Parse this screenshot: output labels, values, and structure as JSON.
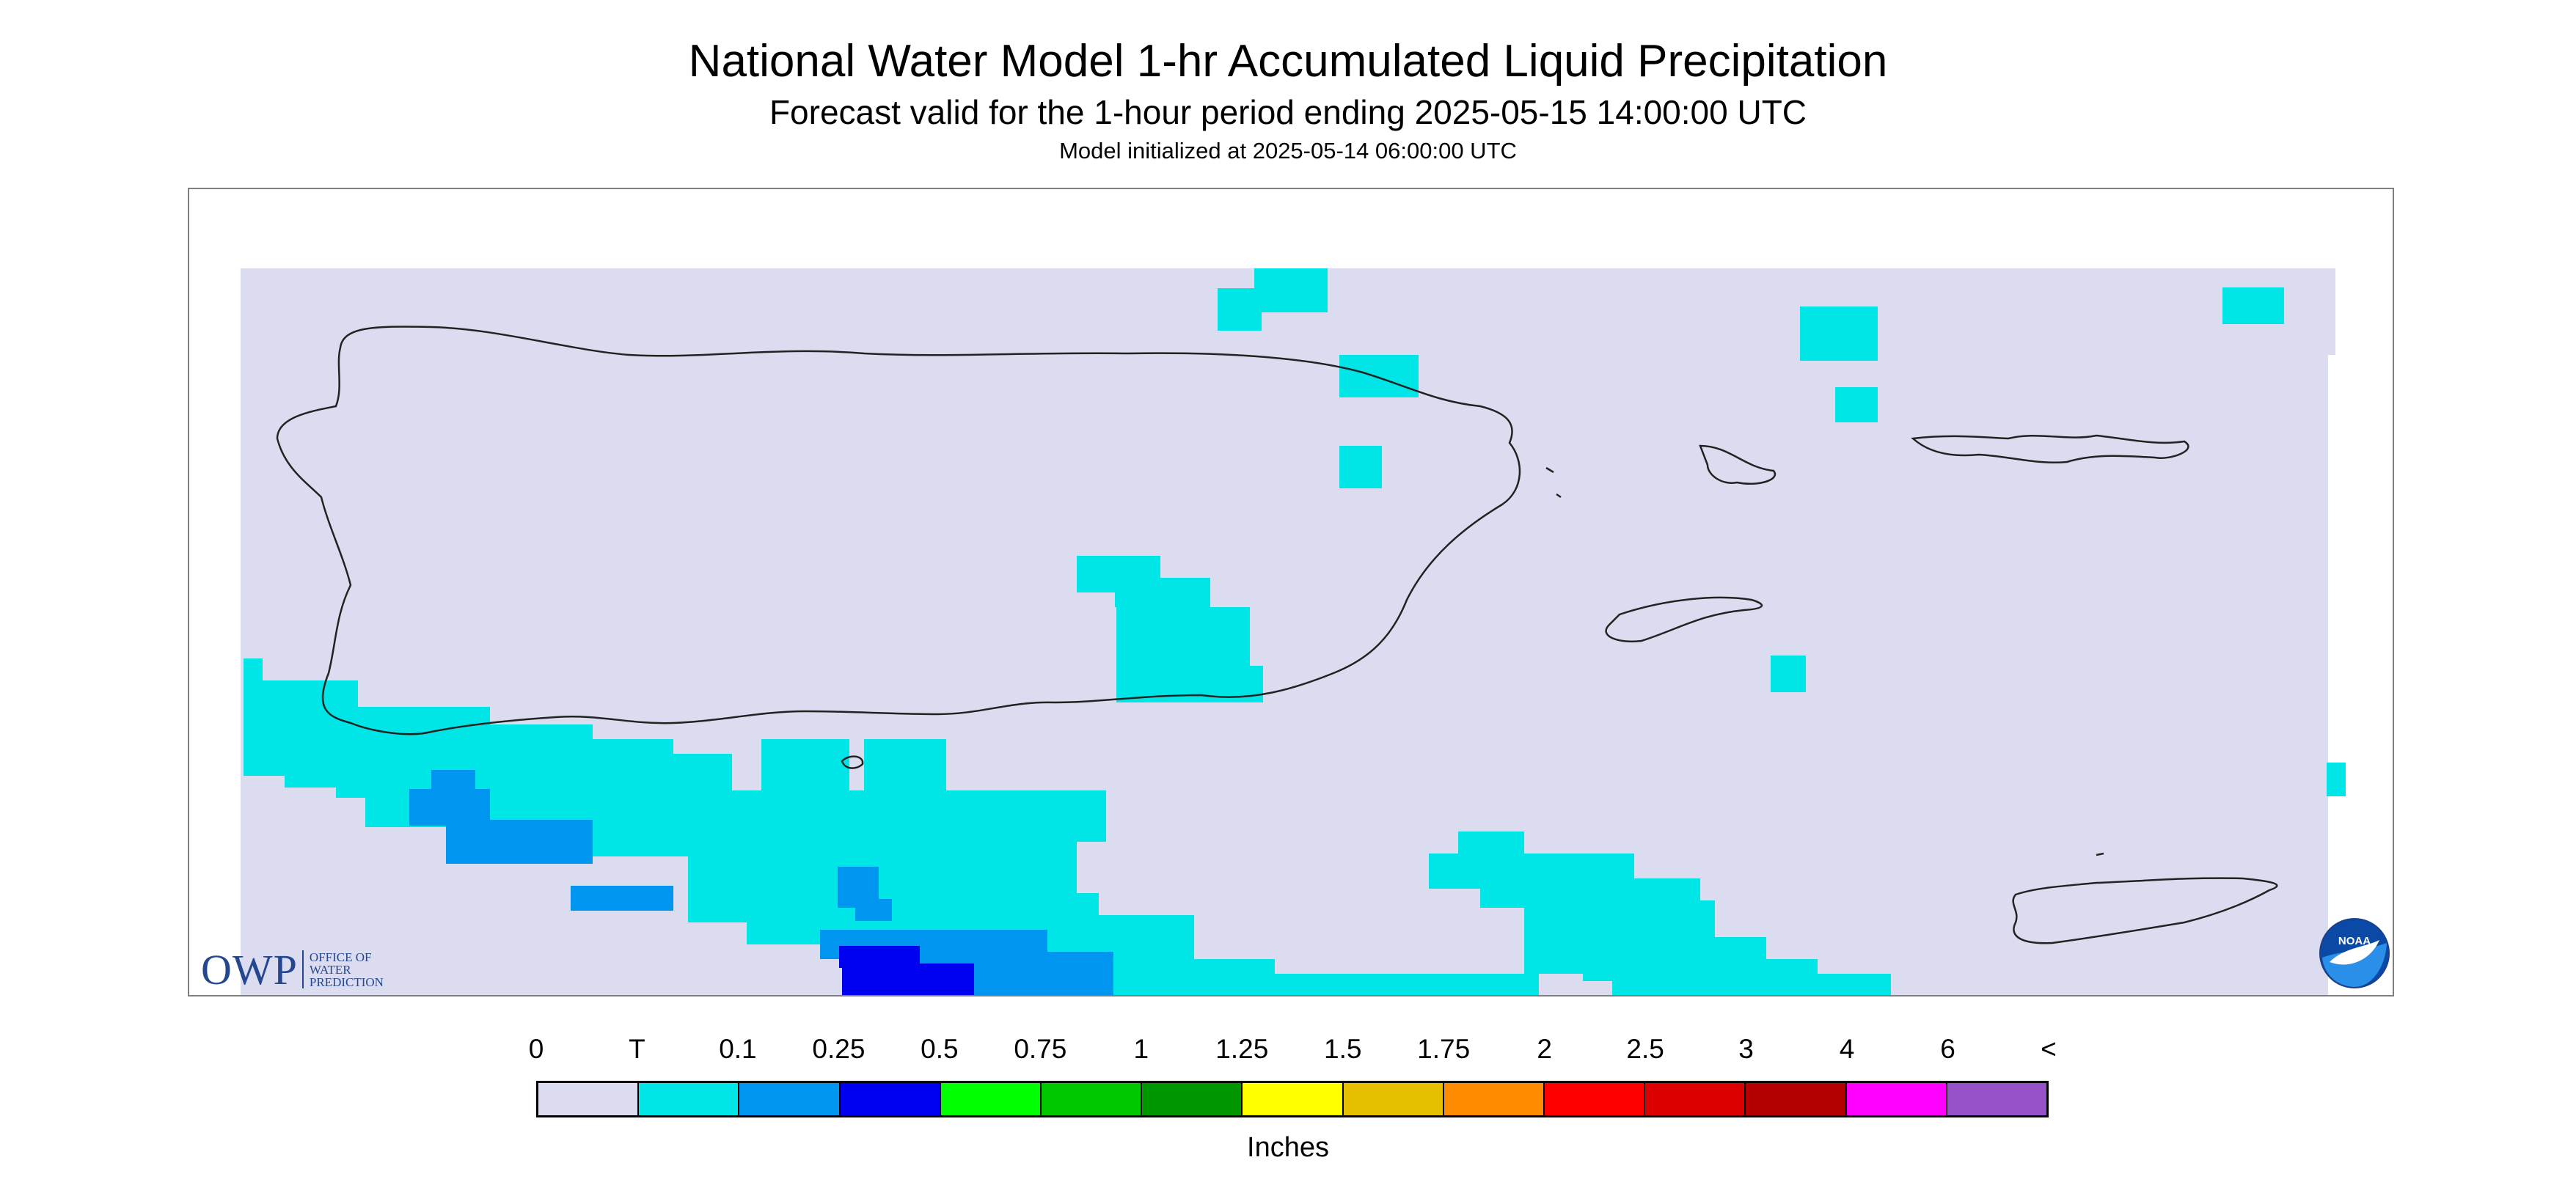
{
  "header": {
    "title": "National Water Model 1-hr Accumulated Liquid Precipitation",
    "subtitle": "Forecast valid for the 1-hour period ending 2025-05-15 14:00:00 UTC",
    "initialized": "Model initialized at 2025-05-14 06:00:00 UTC"
  },
  "map": {
    "region": "Puerto Rico and U.S. Virgin Islands",
    "no_data_color": "#ffffff",
    "background_color": "#dcdcf0",
    "precip_areas": [
      {
        "category": "T",
        "color": "#00e6e6",
        "extent": "scattered cells south of Puerto Rico coast"
      },
      {
        "category": "T",
        "color": "#00e6e6",
        "extent": "central Puerto Rico interior"
      },
      {
        "category": "0.1",
        "color": "#0096f0",
        "extent": "offshore south-west"
      },
      {
        "category": "0.25",
        "color": "#0000f0",
        "extent": "offshore south"
      }
    ]
  },
  "legend": {
    "labels": [
      "0",
      "T",
      "0.1",
      "0.25",
      "0.5",
      "0.75",
      "1",
      "1.25",
      "1.5",
      "1.75",
      "2",
      "2.5",
      "3",
      "4",
      "6",
      "<"
    ],
    "colors": [
      "#dcdcf0",
      "#00e6e6",
      "#0096f0",
      "#0000f0",
      "#00ff00",
      "#00c800",
      "#009600",
      "#ffff00",
      "#e6be00",
      "#ff8c00",
      "#ff0000",
      "#dc0000",
      "#b40000",
      "#ff00ff",
      "#9650c8"
    ],
    "units": "Inches"
  },
  "logos": {
    "owp": {
      "letters": "OWP",
      "line1": "OFFICE OF",
      "line2": "WATER",
      "line3": "PREDICTION"
    },
    "noaa": {
      "text": "NOAA"
    }
  }
}
